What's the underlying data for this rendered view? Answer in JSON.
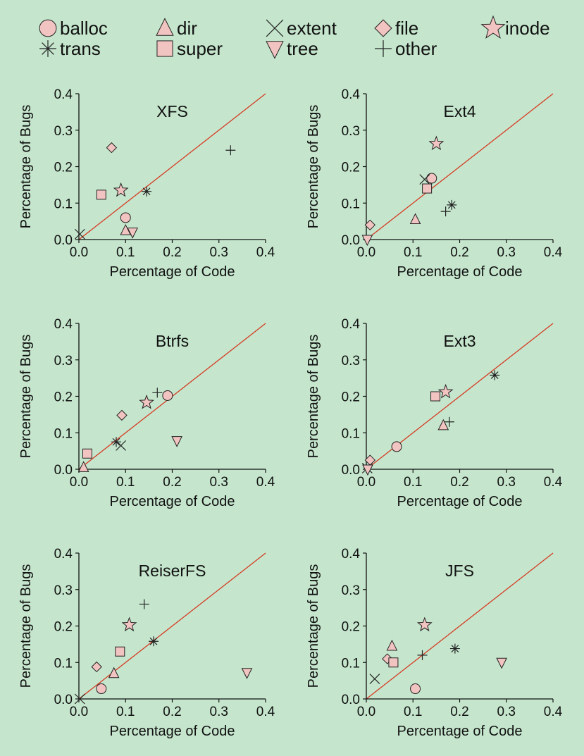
{
  "legend": [
    {
      "key": "balloc",
      "label": "balloc"
    },
    {
      "key": "dir",
      "label": "dir"
    },
    {
      "key": "extent",
      "label": "extent"
    },
    {
      "key": "file",
      "label": "file"
    },
    {
      "key": "inode",
      "label": "inode"
    },
    {
      "key": "trans",
      "label": "trans"
    },
    {
      "key": "super",
      "label": "super"
    },
    {
      "key": "tree",
      "label": "tree"
    },
    {
      "key": "other",
      "label": "other"
    }
  ],
  "colors": {
    "background": "#c5e6cd",
    "marker_fill": "#f2c4c1",
    "marker_stroke": "#222222",
    "diagonal": "#d63a22"
  },
  "chart_data": [
    {
      "type": "scatter",
      "title": "XFS",
      "xlabel": "Percentage of Code",
      "ylabel": "Percentage of Bugs",
      "xlim": [
        0,
        0.4
      ],
      "ylim": [
        0,
        0.4
      ],
      "xticks": [
        "0.0",
        "0.1",
        "0.2",
        "0.3",
        "0.4"
      ],
      "yticks": [
        "0.0",
        "0.1",
        "0.2",
        "0.3",
        "0.4"
      ],
      "reference_line": "y = x",
      "grid": false,
      "points": [
        {
          "series": "balloc",
          "x": 0.1,
          "y": 0.06
        },
        {
          "series": "dir",
          "x": 0.1,
          "y": 0.025
        },
        {
          "series": "extent",
          "x": 0.002,
          "y": 0.015
        },
        {
          "series": "file",
          "x": 0.07,
          "y": 0.252
        },
        {
          "series": "inode",
          "x": 0.09,
          "y": 0.135
        },
        {
          "series": "trans",
          "x": 0.145,
          "y": 0.132
        },
        {
          "series": "super",
          "x": 0.048,
          "y": 0.123
        },
        {
          "series": "tree",
          "x": 0.115,
          "y": 0.02
        },
        {
          "series": "other",
          "x": 0.325,
          "y": 0.245
        }
      ]
    },
    {
      "type": "scatter",
      "title": "Ext4",
      "xlabel": "Percentage of Code",
      "ylabel": "Percentage of Bugs",
      "xlim": [
        0,
        0.4
      ],
      "ylim": [
        0,
        0.4
      ],
      "xticks": [
        "0.0",
        "0.1",
        "0.2",
        "0.3",
        "0.4"
      ],
      "yticks": [
        "0.0",
        "0.1",
        "0.2",
        "0.3",
        "0.4"
      ],
      "reference_line": "y = x",
      "grid": false,
      "points": [
        {
          "series": "balloc",
          "x": 0.14,
          "y": 0.168
        },
        {
          "series": "dir",
          "x": 0.105,
          "y": 0.055
        },
        {
          "series": "extent",
          "x": 0.125,
          "y": 0.165
        },
        {
          "series": "file",
          "x": 0.008,
          "y": 0.04
        },
        {
          "series": "inode",
          "x": 0.15,
          "y": 0.263
        },
        {
          "series": "trans",
          "x": 0.183,
          "y": 0.095
        },
        {
          "series": "super",
          "x": 0.13,
          "y": 0.14
        },
        {
          "series": "tree",
          "x": 0.002,
          "y": 0.0
        },
        {
          "series": "other",
          "x": 0.17,
          "y": 0.077
        }
      ]
    },
    {
      "type": "scatter",
      "title": "Btrfs",
      "xlabel": "Percentage of Code",
      "ylabel": "Percentage of Bugs",
      "xlim": [
        0,
        0.4
      ],
      "ylim": [
        0,
        0.4
      ],
      "xticks": [
        "0.0",
        "0.1",
        "0.2",
        "0.3",
        "0.4"
      ],
      "yticks": [
        "0.0",
        "0.1",
        "0.2",
        "0.3",
        "0.4"
      ],
      "reference_line": "y = x",
      "grid": false,
      "points": [
        {
          "series": "balloc",
          "x": 0.19,
          "y": 0.202
        },
        {
          "series": "dir",
          "x": 0.01,
          "y": 0.005
        },
        {
          "series": "extent",
          "x": 0.09,
          "y": 0.065
        },
        {
          "series": "file",
          "x": 0.092,
          "y": 0.148
        },
        {
          "series": "inode",
          "x": 0.145,
          "y": 0.183
        },
        {
          "series": "trans",
          "x": 0.08,
          "y": 0.075
        },
        {
          "series": "super",
          "x": 0.018,
          "y": 0.043
        },
        {
          "series": "tree",
          "x": 0.21,
          "y": 0.078
        },
        {
          "series": "other",
          "x": 0.168,
          "y": 0.21
        }
      ]
    },
    {
      "type": "scatter",
      "title": "Ext3",
      "xlabel": "Percentage of Code",
      "ylabel": "Percentage of Bugs",
      "xlim": [
        0,
        0.4
      ],
      "ylim": [
        0,
        0.4
      ],
      "xticks": [
        "0.0",
        "0.1",
        "0.2",
        "0.3",
        "0.4"
      ],
      "yticks": [
        "0.0",
        "0.1",
        "0.2",
        "0.3",
        "0.4"
      ],
      "reference_line": "y = x",
      "grid": false,
      "points": [
        {
          "series": "balloc",
          "x": 0.065,
          "y": 0.062
        },
        {
          "series": "dir",
          "x": 0.165,
          "y": 0.12
        },
        {
          "series": "extent",
          "x": 0.002,
          "y": 0.003
        },
        {
          "series": "file",
          "x": 0.008,
          "y": 0.025
        },
        {
          "series": "inode",
          "x": 0.17,
          "y": 0.212
        },
        {
          "series": "trans",
          "x": 0.275,
          "y": 0.258
        },
        {
          "series": "super",
          "x": 0.148,
          "y": 0.2
        },
        {
          "series": "tree",
          "x": 0.003,
          "y": 0.0
        },
        {
          "series": "other",
          "x": 0.178,
          "y": 0.13
        }
      ]
    },
    {
      "type": "scatter",
      "title": "ReiserFS",
      "xlabel": "Percentage of Code",
      "ylabel": "Percentage of Bugs",
      "xlim": [
        0,
        0.4
      ],
      "ylim": [
        0,
        0.4
      ],
      "xticks": [
        "0.0",
        "0.1",
        "0.2",
        "0.3",
        "0.4"
      ],
      "yticks": [
        "0.0",
        "0.1",
        "0.2",
        "0.3",
        "0.4"
      ],
      "reference_line": "y = x",
      "grid": false,
      "points": [
        {
          "series": "balloc",
          "x": 0.048,
          "y": 0.028
        },
        {
          "series": "dir",
          "x": 0.075,
          "y": 0.07
        },
        {
          "series": "extent",
          "x": 0.002,
          "y": 0.0
        },
        {
          "series": "file",
          "x": 0.038,
          "y": 0.088
        },
        {
          "series": "inode",
          "x": 0.108,
          "y": 0.203
        },
        {
          "series": "trans",
          "x": 0.16,
          "y": 0.158
        },
        {
          "series": "super",
          "x": 0.088,
          "y": 0.13
        },
        {
          "series": "tree",
          "x": 0.36,
          "y": 0.072
        },
        {
          "series": "other",
          "x": 0.14,
          "y": 0.26
        }
      ]
    },
    {
      "type": "scatter",
      "title": "JFS",
      "xlabel": "Percentage of Code",
      "ylabel": "Percentage of Bugs",
      "xlim": [
        0,
        0.4
      ],
      "ylim": [
        0,
        0.4
      ],
      "xticks": [
        "0.0",
        "0.1",
        "0.2",
        "0.3",
        "0.4"
      ],
      "yticks": [
        "0.0",
        "0.1",
        "0.2",
        "0.3",
        "0.4"
      ],
      "reference_line": "y = x",
      "grid": false,
      "points": [
        {
          "series": "balloc",
          "x": 0.105,
          "y": 0.028
        },
        {
          "series": "dir",
          "x": 0.055,
          "y": 0.145
        },
        {
          "series": "extent",
          "x": 0.018,
          "y": 0.055
        },
        {
          "series": "file",
          "x": 0.045,
          "y": 0.11
        },
        {
          "series": "inode",
          "x": 0.125,
          "y": 0.203
        },
        {
          "series": "trans",
          "x": 0.19,
          "y": 0.138
        },
        {
          "series": "super",
          "x": 0.058,
          "y": 0.1
        },
        {
          "series": "tree",
          "x": 0.29,
          "y": 0.1
        },
        {
          "series": "other",
          "x": 0.12,
          "y": 0.12
        }
      ]
    }
  ]
}
